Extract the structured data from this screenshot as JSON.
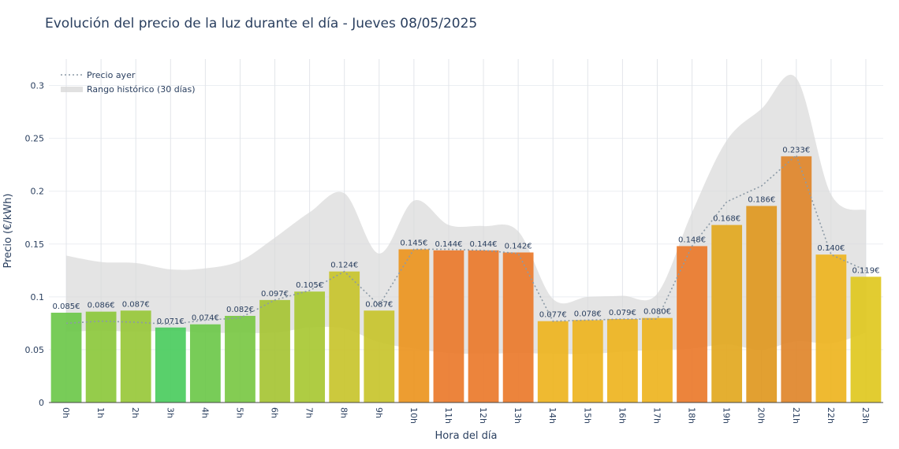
{
  "chart_data": {
    "type": "bar",
    "title": "Evolución del precio de la luz durante el día - Jueves 08/05/2025",
    "xlabel": "Hora del día",
    "ylabel": "Precio (€/kWh)",
    "ylim": [
      0,
      0.325
    ],
    "yticks": [
      {
        "value": 0,
        "label": "0"
      },
      {
        "value": 0.05,
        "label": "0.05"
      },
      {
        "value": 0.1,
        "label": "0.1"
      },
      {
        "value": 0.15,
        "label": "0.15"
      },
      {
        "value": 0.2,
        "label": "0.2"
      },
      {
        "value": 0.25,
        "label": "0.25"
      },
      {
        "value": 0.3,
        "label": "0.3"
      }
    ],
    "grid": true,
    "legend_position": "top-left",
    "categories": [
      "0h",
      "1h",
      "2h",
      "3h",
      "4h",
      "5h",
      "6h",
      "7h",
      "8h",
      "9h",
      "10h",
      "11h",
      "12h",
      "13h",
      "14h",
      "15h",
      "16h",
      "17h",
      "18h",
      "19h",
      "20h",
      "21h",
      "22h",
      "23h"
    ],
    "values": [
      0.085,
      0.086,
      0.087,
      0.071,
      0.074,
      0.082,
      0.097,
      0.105,
      0.124,
      0.087,
      0.145,
      0.144,
      0.144,
      0.142,
      0.077,
      0.078,
      0.079,
      0.08,
      0.148,
      0.168,
      0.186,
      0.233,
      0.14,
      0.119
    ],
    "value_labels": [
      "0.085€",
      "0.086€",
      "0.087€",
      "0.071€",
      "0.074€",
      "0.082€",
      "0.097€",
      "0.105€",
      "0.124€",
      "0.087€",
      "0.145€",
      "0.144€",
      "0.144€",
      "0.142€",
      "0.077€",
      "0.078€",
      "0.079€",
      "0.080€",
      "0.148€",
      "0.168€",
      "0.186€",
      "0.233€",
      "0.140€",
      "0.119€"
    ],
    "bar_colors": [
      "#6cc84a",
      "#8cc83c",
      "#98c83a",
      "#4bcc5e",
      "#6cc84a",
      "#7ac844",
      "#a6c434",
      "#a8c833",
      "#c8c42c",
      "#c8c42c",
      "#eb9520",
      "#ea7a2b",
      "#ea7a2b",
      "#ea7a2b",
      "#eeb420",
      "#eeb420",
      "#eeb420",
      "#eeb420",
      "#ea7a2b",
      "#e2a820",
      "#e09820",
      "#e0862a",
      "#eeb420",
      "#e0c820"
    ],
    "series": [
      {
        "name": "Precio ayer",
        "style": "dotted-line",
        "color": "#8c9aa6",
        "values": [
          0.075,
          0.077,
          0.076,
          0.074,
          0.078,
          0.08,
          0.097,
          0.106,
          0.124,
          0.092,
          0.145,
          0.145,
          0.144,
          0.141,
          0.077,
          0.078,
          0.079,
          0.079,
          0.148,
          0.19,
          0.205,
          0.234,
          0.14,
          0.125
        ]
      },
      {
        "name": "Rango histórico (30 días)",
        "style": "area-band",
        "color": "#d9d9d9",
        "upper": [
          0.139,
          0.133,
          0.132,
          0.126,
          0.127,
          0.134,
          0.156,
          0.18,
          0.198,
          0.141,
          0.191,
          0.168,
          0.167,
          0.162,
          0.098,
          0.1,
          0.101,
          0.103,
          0.18,
          0.248,
          0.278,
          0.307,
          0.197,
          0.182
        ],
        "lower": [
          0.067,
          0.068,
          0.067,
          0.068,
          0.066,
          0.066,
          0.066,
          0.071,
          0.07,
          0.057,
          0.051,
          0.047,
          0.046,
          0.047,
          0.046,
          0.046,
          0.048,
          0.05,
          0.051,
          0.055,
          0.05,
          0.058,
          0.056,
          0.066
        ]
      }
    ]
  }
}
